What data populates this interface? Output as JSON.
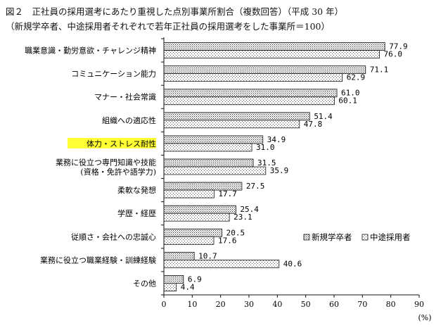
{
  "chart_data": {
    "type": "bar",
    "orientation": "horizontal",
    "title": "図２　正社員の採用選考にあたり重視した点別事業所割合（複数回答）（平成 30 年）",
    "subtitle": "（新規学卒者、中途採用者それぞれで若年正社員の採用選考をした事業所＝100）",
    "categories": [
      "職業意識・勤労意欲・チャレンジ精神",
      "コミュニケーション能力",
      "マナー・社会常識",
      "組織への適応性",
      "体力・ストレス耐性",
      "業務に役立つ専門知識や技能\n(資格・免許や語学力)",
      "柔軟な発想",
      "学歴・経歴",
      "従順さ・会社への忠誠心",
      "業務に役立つ職業経験・訓練経験",
      "その他"
    ],
    "series": [
      {
        "name": "新規学卒者",
        "values": [
          77.9,
          71.1,
          61.0,
          51.4,
          34.9,
          31.5,
          27.5,
          25.4,
          20.5,
          10.7,
          6.9
        ]
      },
      {
        "name": "中途採用者",
        "values": [
          76.0,
          62.9,
          60.1,
          47.8,
          31.0,
          35.9,
          17.7,
          23.1,
          17.6,
          40.6,
          4.4
        ]
      }
    ],
    "value_labels": [
      [
        "77.9",
        "71.1",
        "61.0",
        "51.4",
        "34.9",
        "31.5",
        "27.5",
        "25.4",
        "20.5",
        "10.7",
        "6.9"
      ],
      [
        "76.0",
        "62.9",
        "60.1",
        "47.8",
        "31.0",
        "35.9",
        "17.7",
        "23.1",
        "17.6",
        "40.6",
        "4.4"
      ]
    ],
    "xlim": [
      0,
      90
    ],
    "xticks": [
      0,
      10,
      20,
      30,
      40,
      50,
      60,
      70,
      80,
      90
    ],
    "xunit": "(%)",
    "highlighted_category_index": 4,
    "highlight_color": "#ffff33",
    "legend_position": "right",
    "grid": false
  }
}
